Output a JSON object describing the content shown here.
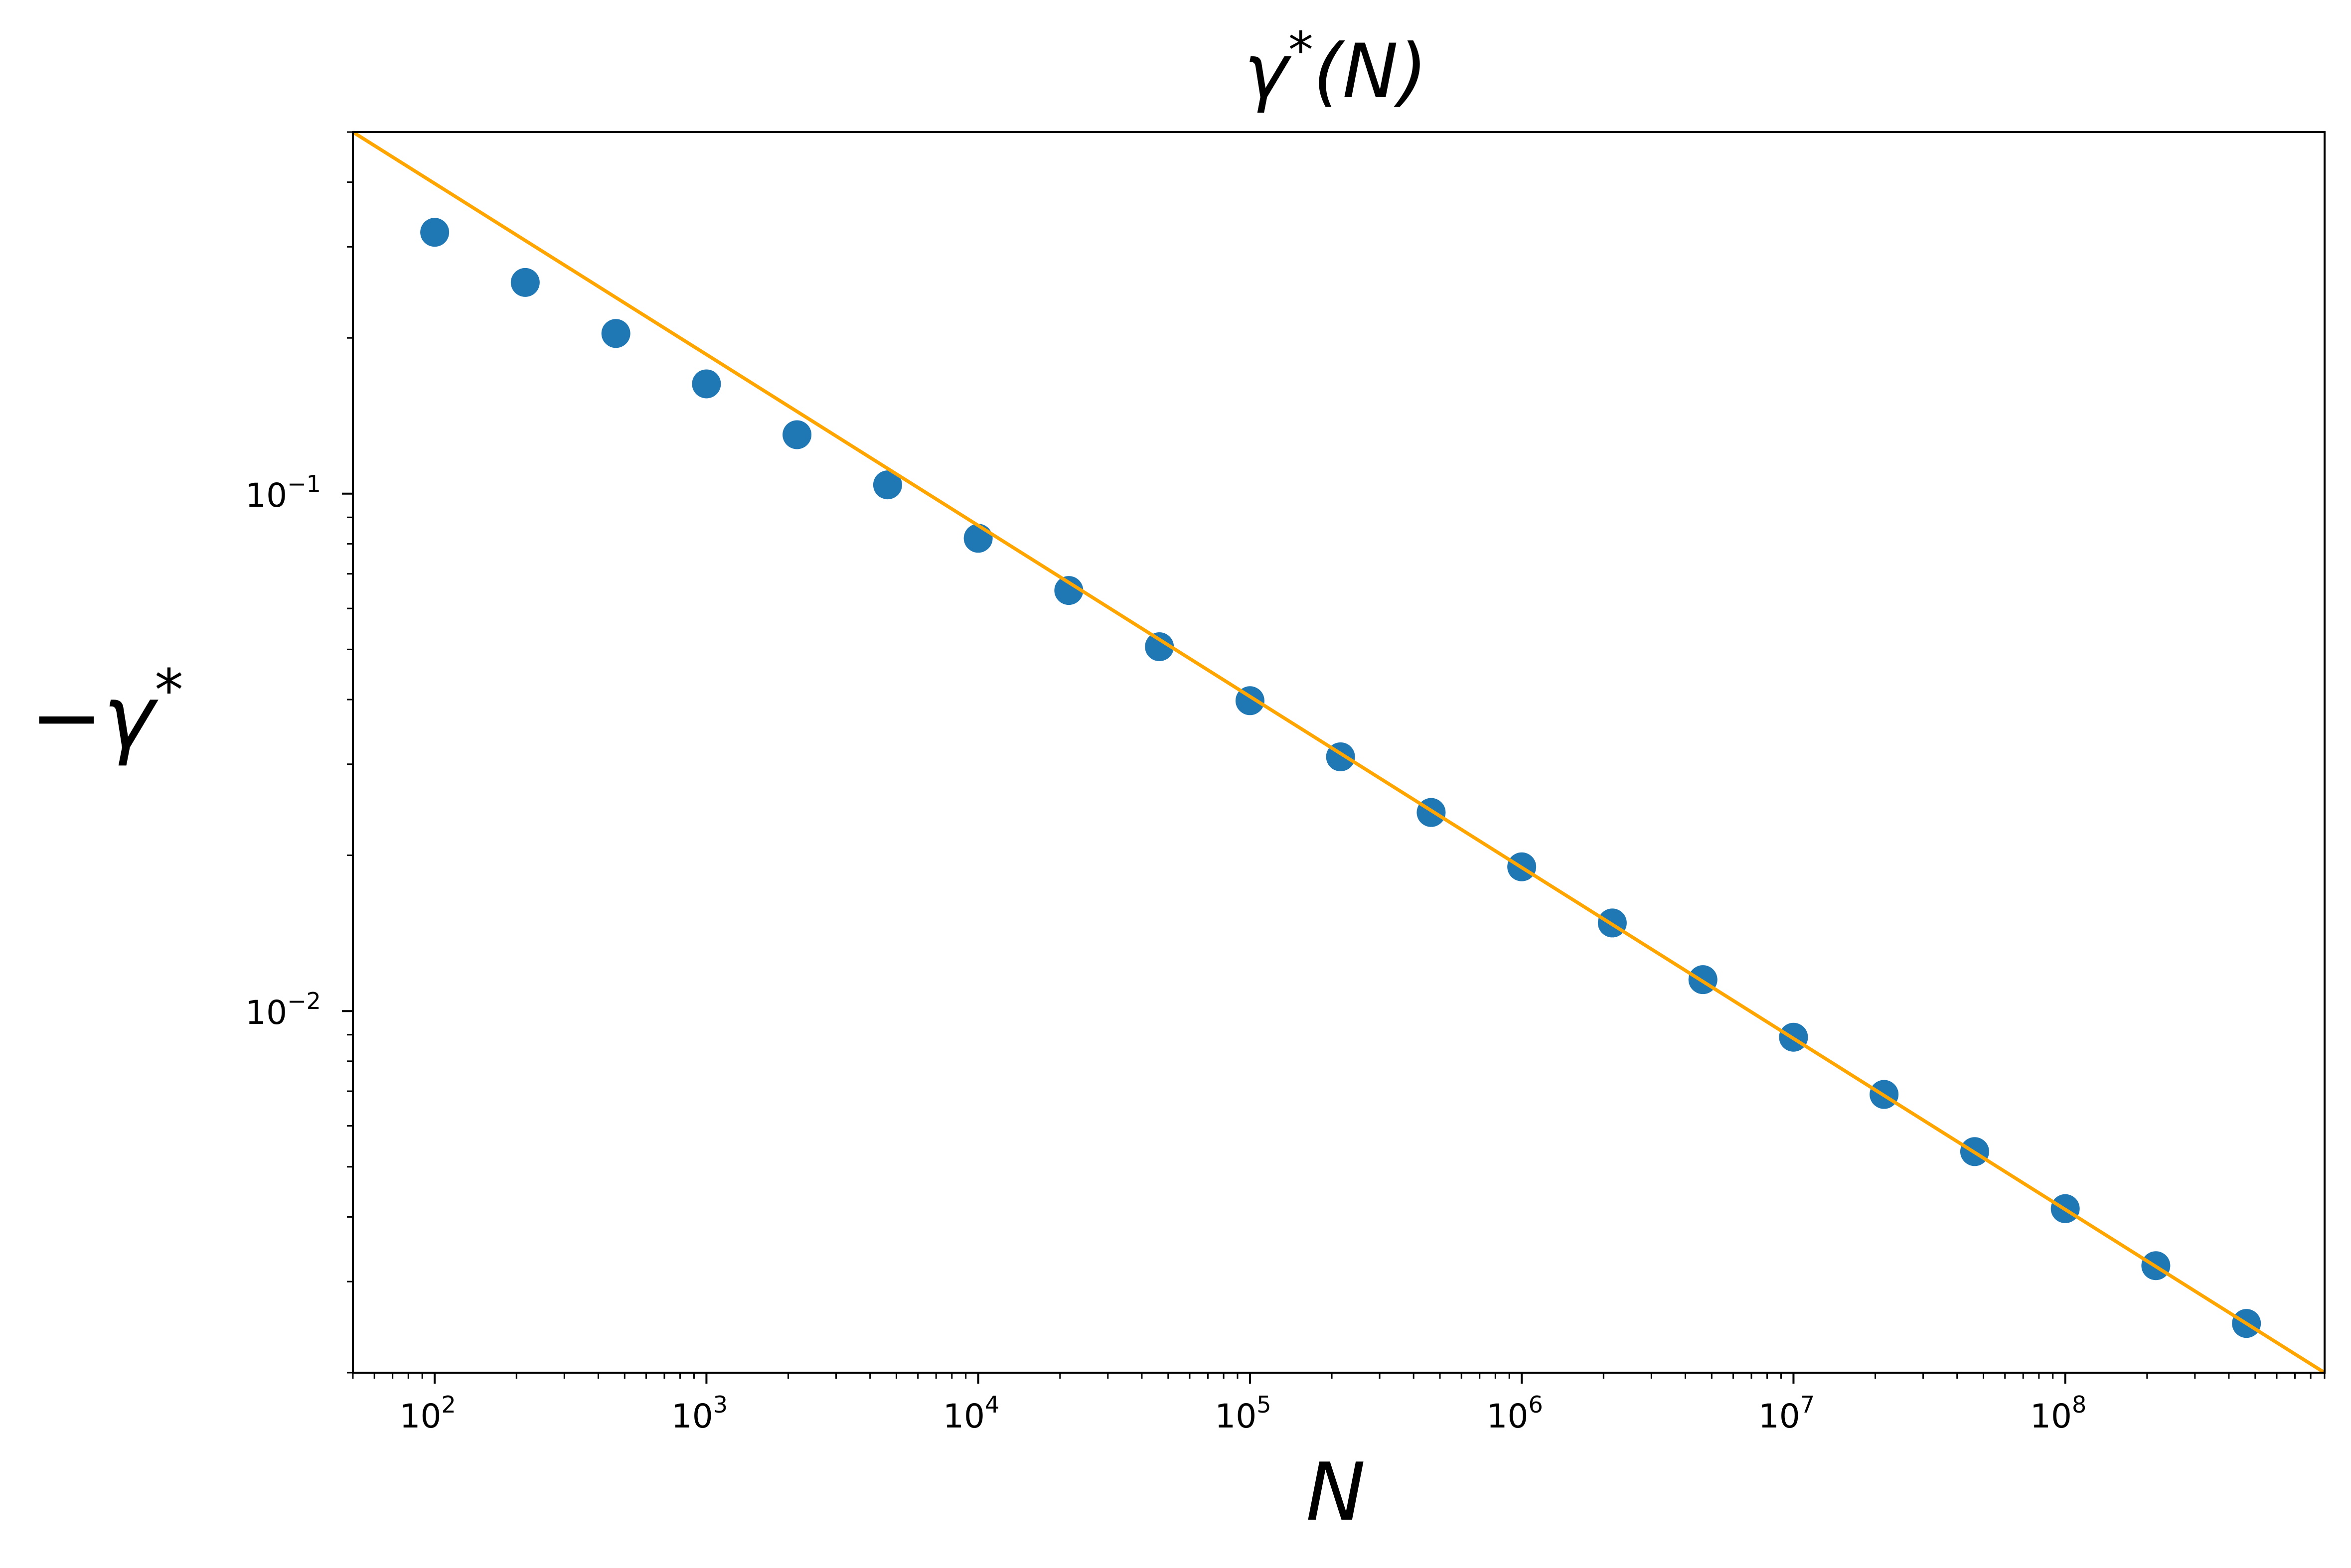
{
  "chart_data": {
    "type": "scatter",
    "title": "γ*(N)",
    "title_parts": {
      "symbol": "γ",
      "star": "*",
      "arg": "(N)"
    },
    "xlabel": "N",
    "ylabel": "−γ*",
    "ylabel_parts": {
      "symbol": "−γ",
      "star": "*"
    },
    "xscale": "log",
    "yscale": "log",
    "xlim": [
      50,
      900000000
    ],
    "ylim": [
      0.002,
      0.5
    ],
    "grid": false,
    "x_ticks": [
      {
        "value": 100,
        "base": "10",
        "exp": "2"
      },
      {
        "value": 1000,
        "base": "10",
        "exp": "3"
      },
      {
        "value": 10000,
        "base": "10",
        "exp": "4"
      },
      {
        "value": 100000,
        "base": "10",
        "exp": "5"
      },
      {
        "value": 1000000,
        "base": "10",
        "exp": "6"
      },
      {
        "value": 10000000,
        "base": "10",
        "exp": "7"
      },
      {
        "value": 100000000,
        "base": "10",
        "exp": "8"
      }
    ],
    "y_ticks": [
      {
        "value": 0.1,
        "base": "10",
        "exp": "−1"
      },
      {
        "value": 0.01,
        "base": "10",
        "exp": "−2"
      }
    ],
    "series": [
      {
        "kind": "scatter",
        "color": "#1f77b4",
        "x": [
          100,
          215.4,
          464.2,
          1000,
          2154,
          4642,
          10000,
          21540,
          46420,
          100000,
          215400,
          464200,
          1000000,
          2154000,
          4642000,
          10000000,
          21540000,
          46420000,
          100000000,
          215400000,
          464200000
        ],
        "y": [
          0.32,
          0.256,
          0.204,
          0.163,
          0.13,
          0.104,
          0.082,
          0.065,
          0.0506,
          0.0398,
          0.031,
          0.0242,
          0.019,
          0.0148,
          0.0115,
          0.0089,
          0.0069,
          0.00535,
          0.00415,
          0.00322,
          0.00249
        ]
      },
      {
        "kind": "line",
        "color": "#ffa500",
        "x": [
          50,
          900000000
        ],
        "y": [
          0.5,
          0.002
        ]
      }
    ]
  }
}
